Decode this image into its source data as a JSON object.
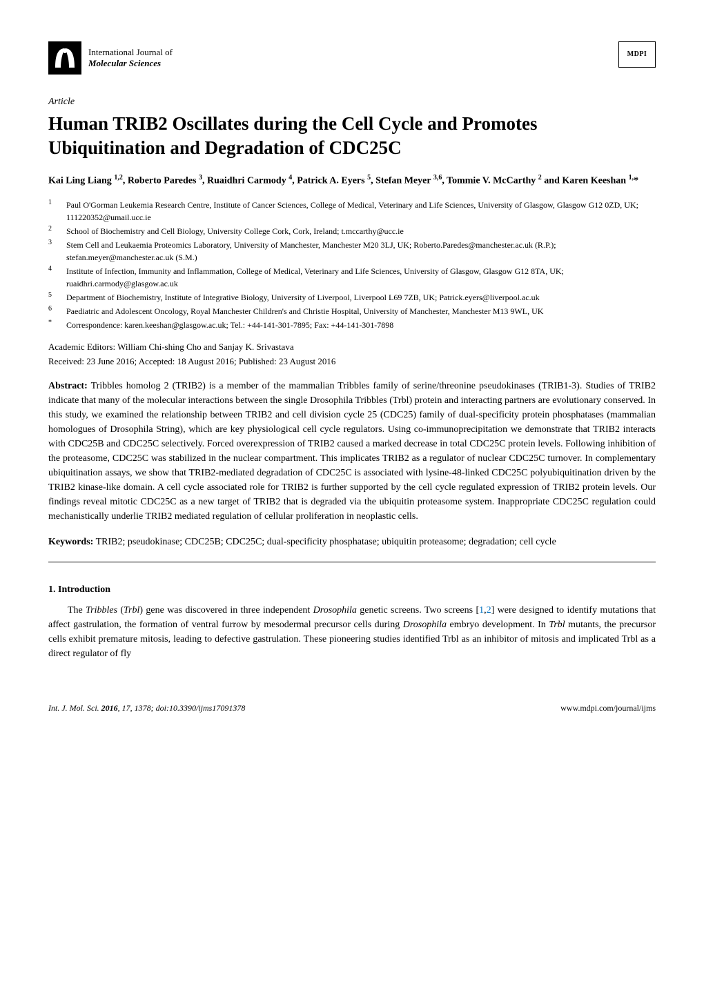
{
  "header": {
    "journal_line1": "International Journal of",
    "journal_line2": "Molecular Sciences",
    "publisher_logo_text": "MDPI"
  },
  "article_type": "Article",
  "title": "Human TRIB2 Oscillates during the Cell Cycle and Promotes Ubiquitination and Degradation of CDC25C",
  "authors_html": "Kai Ling Liang <sup>1,2</sup>, Roberto Paredes <sup>3</sup>, Ruaidhri Carmody <sup>4</sup>, Patrick A. Eyers <sup>5</sup>, Stefan Meyer <sup>3,6</sup>, Tommie V. McCarthy <sup>2</sup> and Karen Keeshan <sup>1,</sup>*",
  "affiliations": [
    {
      "num": "1",
      "text": "Paul O'Gorman Leukemia Research Centre, Institute of Cancer Sciences, College of Medical, Veterinary and Life Sciences, University of Glasgow, Glasgow G12 0ZD, UK; 111220352@umail.ucc.ie"
    },
    {
      "num": "2",
      "text": "School of Biochemistry and Cell Biology, University College Cork, Cork, Ireland; t.mccarthy@ucc.ie"
    },
    {
      "num": "3",
      "text": "Stem Cell and Leukaemia Proteomics Laboratory, University of Manchester, Manchester M20 3LJ, UK; Roberto.Paredes@manchester.ac.uk (R.P.); stefan.meyer@manchester.ac.uk (S.M.)"
    },
    {
      "num": "4",
      "text": "Institute of Infection, Immunity and Inflammation, College of Medical, Veterinary and Life Sciences, University of Glasgow, Glasgow G12 8TA, UK; ruaidhri.carmody@glasgow.ac.uk"
    },
    {
      "num": "5",
      "text": "Department of Biochemistry, Institute of Integrative Biology, University of Liverpool, Liverpool L69 7ZB, UK; Patrick.eyers@liverpool.ac.uk"
    },
    {
      "num": "6",
      "text": "Paediatric and Adolescent Oncology, Royal Manchester Children's and Christie Hospital, University of Manchester, Manchester M13 9WL, UK"
    },
    {
      "num": "*",
      "text": "Correspondence: karen.keeshan@glasgow.ac.uk; Tel.: +44-141-301-7895; Fax: +44-141-301-7898"
    }
  ],
  "editors": "Academic Editors: William Chi-shing Cho and Sanjay K. Srivastava",
  "dates": "Received: 23 June 2016; Accepted: 18 August 2016; Published: 23 August 2016",
  "abstract_label": "Abstract:",
  "abstract_text": " Tribbles homolog 2 (TRIB2) is a member of the mammalian Tribbles family of serine/threonine pseudokinases (TRIB1-3). Studies of TRIB2 indicate that many of the molecular interactions between the single Drosophila Tribbles (Trbl) protein and interacting partners are evolutionary conserved. In this study, we examined the relationship between TRIB2 and cell division cycle 25 (CDC25) family of dual-specificity protein phosphatases (mammalian homologues of Drosophila String), which are key physiological cell cycle regulators. Using co-immunoprecipitation we demonstrate that TRIB2 interacts with CDC25B and CDC25C selectively. Forced overexpression of TRIB2 caused a marked decrease in total CDC25C protein levels. Following inhibition of the proteasome, CDC25C was stabilized in the nuclear compartment. This implicates TRIB2 as a regulator of nuclear CDC25C turnover. In complementary ubiquitination assays, we show that TRIB2-mediated degradation of CDC25C is associated with lysine-48-linked CDC25C polyubiquitination driven by the TRIB2 kinase-like domain. A cell cycle associated role for TRIB2 is further supported by the cell cycle regulated expression of TRIB2 protein levels. Our findings reveal mitotic CDC25C as a new target of TRIB2 that is degraded via the ubiquitin proteasome system. Inappropriate CDC25C regulation could mechanistically underlie TRIB2 mediated regulation of cellular proliferation in neoplastic cells.",
  "keywords_label": "Keywords:",
  "keywords_text": " TRIB2; pseudokinase; CDC25B; CDC25C; dual-specificity phosphatase; ubiquitin proteasome; degradation; cell cycle",
  "section_heading": "1. Introduction",
  "body_text_html": "The <i>Tribbles</i> (<i>Trbl</i>) gene was discovered in three independent <i>Drosophila</i> genetic screens. Two screens [<span class=\"ref\">1</span>,<span class=\"ref\">2</span>] were designed to identify mutations that affect gastrulation, the formation of ventral furrow by mesodermal precursor cells during <i>Drosophila</i> embryo development. In <i>Trbl</i> mutants, the precursor cells exhibit premature mitosis, leading to defective gastrulation. These pioneering studies identified Trbl as an inhibitor of mitosis and implicated Trbl as a direct regulator of fly",
  "footer": {
    "left_html": "<i>Int. J. Mol. Sci.</i> <b>2016</b>, <i>17</i>, 1378; doi:10.3390/ijms17091378",
    "right": "www.mdpi.com/journal/ijms"
  },
  "colors": {
    "ref_link": "#0070c0",
    "text": "#000000",
    "background": "#ffffff"
  }
}
